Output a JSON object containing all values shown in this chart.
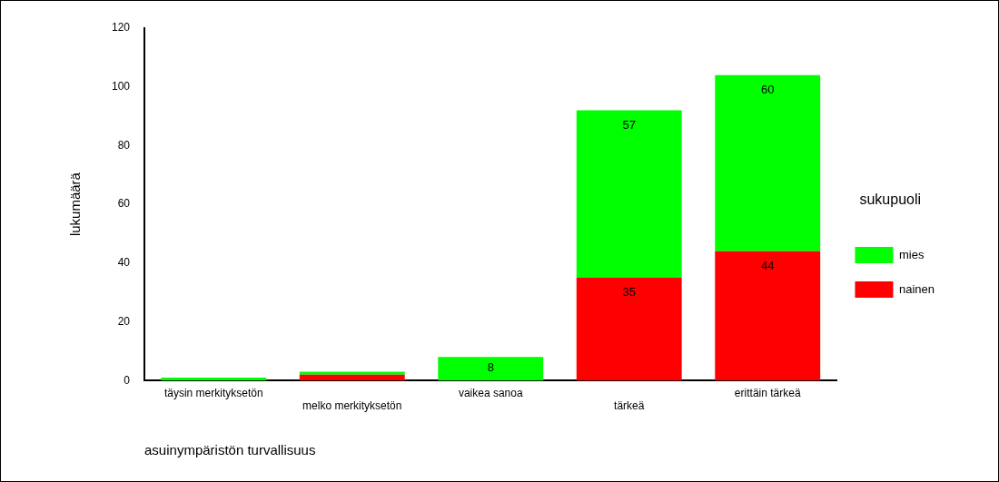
{
  "chart_data": {
    "type": "bar",
    "stacked": true,
    "xlabel": "asuinympäristön turvallisuus",
    "ylabel": "lukumäärä",
    "legend_title": "sukupuoli",
    "legend": "right",
    "categories": [
      "täysin merkityksetön",
      "melko merkityksetön",
      "vaikea sanoa",
      "tärkeä",
      "erittäin tärkeä"
    ],
    "series": [
      {
        "name": "nainen",
        "color": "#ff0000",
        "values": [
          0,
          2,
          0,
          35,
          44
        ],
        "value_labels": [
          null,
          null,
          null,
          "35",
          "44"
        ]
      },
      {
        "name": "mies",
        "color": "#00ff00",
        "values": [
          1,
          1,
          8,
          57,
          60
        ],
        "value_labels": [
          null,
          null,
          "8",
          "57",
          "60"
        ]
      }
    ],
    "ylim": [
      0,
      120
    ],
    "yticks": [
      0,
      20,
      40,
      60,
      80,
      100,
      120
    ],
    "grid": false
  }
}
